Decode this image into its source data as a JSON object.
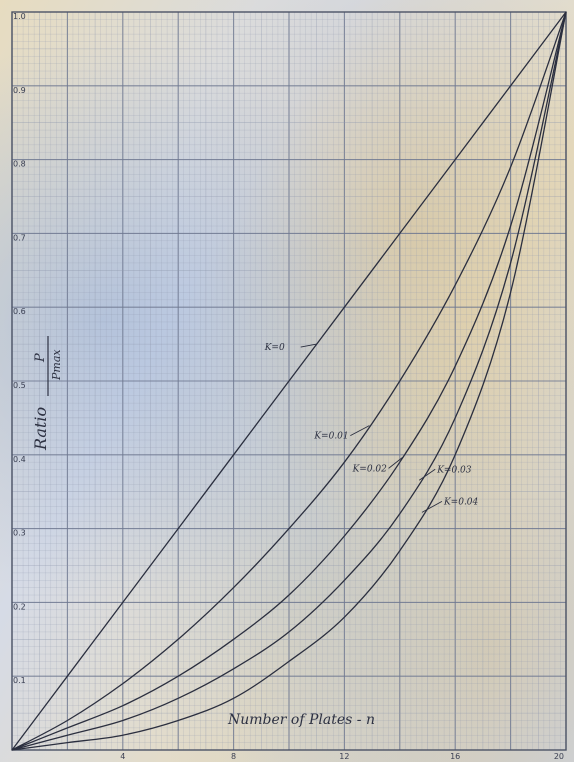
{
  "chart_data": {
    "type": "line",
    "xlabel": "Number of Plates - n",
    "ylabel": "Ratio",
    "ylabel_fraction": {
      "numerator": "P",
      "denominator": "Pmax"
    },
    "xlim": [
      0,
      20
    ],
    "ylim": [
      0,
      1.0
    ],
    "x_ticks": [
      4,
      8,
      12,
      16,
      20
    ],
    "x_tick_labels": [
      "4",
      "8",
      "12",
      "16",
      "20"
    ],
    "y_ticks": [
      0.1,
      0.2,
      0.3,
      0.4,
      0.5,
      0.6,
      0.7,
      0.8,
      0.9,
      1.0
    ],
    "y_tick_labels": [
      "0.1",
      "0.2",
      "0.3",
      "0.4",
      "0.5",
      "0.6",
      "0.7",
      "0.8",
      "0.9",
      "1.0"
    ],
    "grid": true,
    "x": [
      0,
      2,
      4,
      6,
      8,
      10,
      12,
      14,
      16,
      18,
      20
    ],
    "series": [
      {
        "name": "K=0",
        "values": [
          0,
          0.1,
          0.2,
          0.3,
          0.4,
          0.5,
          0.6,
          0.7,
          0.8,
          0.9,
          1.0
        ]
      },
      {
        "name": "K=0.01",
        "values": [
          0,
          0.04,
          0.09,
          0.15,
          0.22,
          0.3,
          0.39,
          0.5,
          0.63,
          0.79,
          1.0
        ]
      },
      {
        "name": "K=0.02",
        "values": [
          0,
          0.03,
          0.06,
          0.1,
          0.15,
          0.21,
          0.29,
          0.39,
          0.52,
          0.71,
          1.0
        ]
      },
      {
        "name": "K=0.03",
        "values": [
          0,
          0.02,
          0.04,
          0.07,
          0.11,
          0.16,
          0.23,
          0.32,
          0.45,
          0.66,
          1.0
        ]
      },
      {
        "name": "K=0.04",
        "values": [
          0,
          0.01,
          0.02,
          0.04,
          0.07,
          0.12,
          0.18,
          0.27,
          0.4,
          0.62,
          1.0
        ]
      }
    ],
    "annotations": [
      {
        "text": "K=0",
        "series": "K=0",
        "at_x": 11.0
      },
      {
        "text": "K=0.01",
        "series": "K=0.01",
        "at_x": 12.9
      },
      {
        "text": "K=0.02",
        "series": "K=0.02",
        "at_x": 14.1
      },
      {
        "text": "K=0.03",
        "series": "K=0.03",
        "at_x": 14.7
      },
      {
        "text": "K=0.04",
        "series": "K=0.04",
        "at_x": 14.8
      }
    ]
  }
}
